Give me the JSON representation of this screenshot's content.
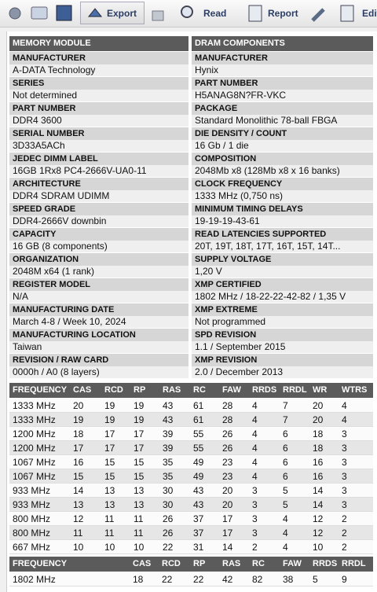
{
  "toolbar": {
    "buttons": [
      "Export",
      "Read",
      "Report",
      "Edit"
    ]
  },
  "module": {
    "header": "MEMORY MODULE",
    "fields": [
      {
        "label": "MANUFACTURER",
        "value": "A-DATA Technology"
      },
      {
        "label": "SERIES",
        "value": "Not determined"
      },
      {
        "label": "PART NUMBER",
        "value": "DDR4 3600"
      },
      {
        "label": "SERIAL NUMBER",
        "value": "3D33A5ACh"
      },
      {
        "label": "JEDEC DIMM LABEL",
        "value": "16GB 1Rx8 PC4-2666V-UA0-11"
      },
      {
        "label": "ARCHITECTURE",
        "value": "DDR4 SDRAM UDIMM"
      },
      {
        "label": "SPEED GRADE",
        "value": "DDR4-2666V downbin"
      },
      {
        "label": "CAPACITY",
        "value": "16 GB (8 components)"
      },
      {
        "label": "ORGANIZATION",
        "value": "2048M x64 (1 rank)"
      },
      {
        "label": "REGISTER MODEL",
        "value": "N/A"
      },
      {
        "label": "MANUFACTURING DATE",
        "value": "March 4-8 / Week 10, 2024"
      },
      {
        "label": "MANUFACTURING LOCATION",
        "value": "Taiwan"
      },
      {
        "label": "REVISION / RAW CARD",
        "value": "0000h / A0 (8 layers)"
      }
    ]
  },
  "dram": {
    "header": "DRAM COMPONENTS",
    "fields": [
      {
        "label": "MANUFACTURER",
        "value": "Hynix"
      },
      {
        "label": "PART NUMBER",
        "value": "H5ANAG8N?FR-VKC"
      },
      {
        "label": "PACKAGE",
        "value": "Standard Monolithic 78-ball FBGA"
      },
      {
        "label": "DIE DENSITY / COUNT",
        "value": "16 Gb / 1 die"
      },
      {
        "label": "COMPOSITION",
        "value": "2048Mb x8 (128Mb x8 x 16 banks)"
      },
      {
        "label": "CLOCK FREQUENCY",
        "value": "1333 MHz (0,750 ns)"
      },
      {
        "label": "MINIMUM TIMING DELAYS",
        "value": "19-19-19-43-61"
      },
      {
        "label": "READ LATENCIES SUPPORTED",
        "value": "20T, 19T, 18T, 17T, 16T, 15T, 14T..."
      },
      {
        "label": "SUPPLY VOLTAGE",
        "value": "1,20 V"
      },
      {
        "label": "XMP CERTIFIED",
        "value": "1802 MHz / 18-22-22-42-82 / 1,35 V"
      },
      {
        "label": "XMP EXTREME",
        "value": "Not programmed"
      },
      {
        "label": "SPD REVISION",
        "value": "1.1 / September 2015"
      },
      {
        "label": "XMP REVISION",
        "value": "2.0 / December 2013"
      }
    ]
  },
  "timings": {
    "columns": [
      "FREQUENCY",
      "CAS",
      "RCD",
      "RP",
      "RAS",
      "RC",
      "FAW",
      "RRDS",
      "RRDL",
      "WR",
      "WTRS"
    ],
    "rows": [
      [
        "1333 MHz",
        20,
        19,
        19,
        43,
        61,
        28,
        4,
        7,
        20,
        4
      ],
      [
        "1333 MHz",
        19,
        19,
        19,
        43,
        61,
        28,
        4,
        7,
        20,
        4
      ],
      [
        "1200 MHz",
        18,
        17,
        17,
        39,
        55,
        26,
        4,
        6,
        18,
        3
      ],
      [
        "1200 MHz",
        17,
        17,
        17,
        39,
        55,
        26,
        4,
        6,
        18,
        3
      ],
      [
        "1067 MHz",
        16,
        15,
        15,
        35,
        49,
        23,
        4,
        6,
        16,
        3
      ],
      [
        "1067 MHz",
        15,
        15,
        15,
        35,
        49,
        23,
        4,
        6,
        16,
        3
      ],
      [
        "933 MHz",
        14,
        13,
        13,
        30,
        43,
        20,
        3,
        5,
        14,
        3
      ],
      [
        "933 MHz",
        13,
        13,
        13,
        30,
        43,
        20,
        3,
        5,
        14,
        3
      ],
      [
        "800 MHz",
        12,
        11,
        11,
        26,
        37,
        17,
        3,
        4,
        12,
        2
      ],
      [
        "800 MHz",
        11,
        11,
        11,
        26,
        37,
        17,
        3,
        4,
        12,
        2
      ],
      [
        "667 MHz",
        10,
        10,
        10,
        22,
        31,
        14,
        2,
        4,
        10,
        2
      ]
    ]
  },
  "xmp": {
    "columns": [
      "FREQUENCY",
      "CAS",
      "RCD",
      "RP",
      "RAS",
      "RC",
      "FAW",
      "RRDS",
      "RRDL"
    ],
    "rows": [
      [
        "1802 MHz",
        18,
        22,
        22,
        42,
        82,
        38,
        5,
        9
      ]
    ]
  }
}
